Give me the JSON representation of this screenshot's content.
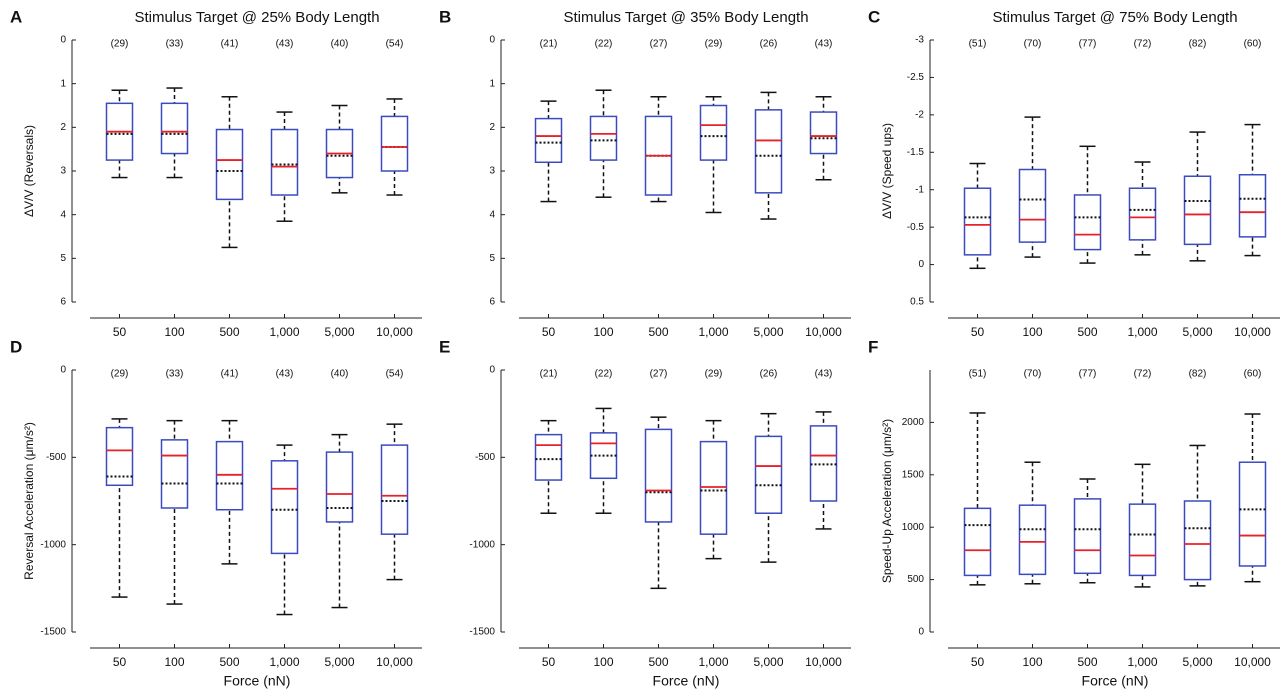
{
  "chart_data": [
    {
      "type": "box",
      "panel": "A",
      "title": "Stimulus Target @ 25% Body Length",
      "ylabel": "ΔV/V (Reversals)",
      "categories": [
        "50",
        "100",
        "500",
        "1,000",
        "5,000",
        "10,000"
      ],
      "counts": [
        "(29)",
        "(33)",
        "(41)",
        "(43)",
        "(40)",
        "(54)"
      ],
      "boxes": [
        {
          "whislo": 1.15,
          "q1": 1.45,
          "med": 2.1,
          "mean": 2.15,
          "q3": 2.75,
          "whishi": 3.15
        },
        {
          "whislo": 1.1,
          "q1": 1.45,
          "med": 2.1,
          "mean": 2.15,
          "q3": 2.6,
          "whishi": 3.15
        },
        {
          "whislo": 1.3,
          "q1": 2.05,
          "med": 2.75,
          "mean": 3.0,
          "q3": 3.65,
          "whishi": 4.75
        },
        {
          "whislo": 1.65,
          "q1": 2.05,
          "med": 2.9,
          "mean": 2.85,
          "q3": 3.55,
          "whishi": 4.15
        },
        {
          "whislo": 1.5,
          "q1": 2.05,
          "med": 2.6,
          "mean": 2.65,
          "q3": 3.15,
          "whishi": 3.5
        },
        {
          "whislo": 1.35,
          "q1": 1.75,
          "med": 2.45,
          "mean": 2.45,
          "q3": 3.0,
          "whishi": 3.55
        }
      ],
      "ylim": [
        0,
        6
      ],
      "yticks": [
        0,
        1,
        2,
        3,
        4,
        5,
        6
      ],
      "inverted": true,
      "box_color": "#3a4bc0",
      "median_color": "#e8202a",
      "mean_color": "#111111"
    },
    {
      "type": "box",
      "panel": "B",
      "title": "Stimulus Target @ 35% Body Length",
      "categories": [
        "50",
        "100",
        "500",
        "1,000",
        "5,000",
        "10,000"
      ],
      "counts": [
        "(21)",
        "(22)",
        "(27)",
        "(29)",
        "(26)",
        "(43)"
      ],
      "boxes": [
        {
          "whislo": 1.4,
          "q1": 1.8,
          "med": 2.2,
          "mean": 2.35,
          "q3": 2.8,
          "whishi": 3.7
        },
        {
          "whislo": 1.15,
          "q1": 1.75,
          "med": 2.15,
          "mean": 2.3,
          "q3": 2.75,
          "whishi": 3.6
        },
        {
          "whislo": 1.3,
          "q1": 1.75,
          "med": 2.65,
          "mean": 2.65,
          "q3": 3.55,
          "whishi": 3.7
        },
        {
          "whislo": 1.3,
          "q1": 1.5,
          "med": 1.95,
          "mean": 2.2,
          "q3": 2.75,
          "whishi": 3.95
        },
        {
          "whislo": 1.2,
          "q1": 1.6,
          "med": 2.3,
          "mean": 2.65,
          "q3": 3.5,
          "whishi": 4.1
        },
        {
          "whislo": 1.3,
          "q1": 1.65,
          "med": 2.2,
          "mean": 2.25,
          "q3": 2.6,
          "whishi": 3.2
        }
      ],
      "ylim": [
        0,
        6
      ],
      "yticks": [
        0,
        1,
        2,
        3,
        4,
        5,
        6
      ],
      "inverted": true,
      "box_color": "#3a4bc0",
      "median_color": "#e8202a",
      "mean_color": "#111111"
    },
    {
      "type": "box",
      "panel": "C",
      "title": "Stimulus Target @ 75% Body Length",
      "ylabel": "ΔV/V (Speed ups)",
      "categories": [
        "50",
        "100",
        "500",
        "1,000",
        "5,000",
        "10,000"
      ],
      "counts": [
        "(51)",
        "(70)",
        "(77)",
        "(72)",
        "(82)",
        "(60)"
      ],
      "boxes": [
        {
          "whislo": -1.35,
          "q1": -1.02,
          "med": -0.53,
          "mean": -0.63,
          "q3": -0.13,
          "whishi": 0.05
        },
        {
          "whislo": -1.97,
          "q1": -1.27,
          "med": -0.6,
          "mean": -0.87,
          "q3": -0.3,
          "whishi": -0.1
        },
        {
          "whislo": -1.58,
          "q1": -0.93,
          "med": -0.4,
          "mean": -0.63,
          "q3": -0.2,
          "whishi": -0.02
        },
        {
          "whislo": -1.37,
          "q1": -1.02,
          "med": -0.63,
          "mean": -0.73,
          "q3": -0.33,
          "whishi": -0.13
        },
        {
          "whislo": -1.77,
          "q1": -1.18,
          "med": -0.67,
          "mean": -0.85,
          "q3": -0.27,
          "whishi": -0.05
        },
        {
          "whislo": -1.87,
          "q1": -1.2,
          "med": -0.7,
          "mean": -0.88,
          "q3": -0.37,
          "whishi": -0.12
        }
      ],
      "ylim": [
        -3,
        0.5
      ],
      "yticks": [
        -3,
        -2.5,
        -2,
        -1.5,
        -1,
        -0.5,
        0,
        0.5
      ],
      "inverted": true,
      "box_color": "#3a4bc0",
      "median_color": "#e8202a",
      "mean_color": "#111111"
    },
    {
      "type": "box",
      "panel": "D",
      "ylabel": "Reversal Acceleration (μm/s²)",
      "xlabel": "Force (nN)",
      "categories": [
        "50",
        "100",
        "500",
        "1,000",
        "5,000",
        "10,000"
      ],
      "counts": [
        "(29)",
        "(33)",
        "(41)",
        "(43)",
        "(40)",
        "(54)"
      ],
      "boxes": [
        {
          "whislo": -1300,
          "q1": -660,
          "med": -460,
          "mean": -610,
          "q3": -330,
          "whishi": -280
        },
        {
          "whislo": -1340,
          "q1": -790,
          "med": -490,
          "mean": -650,
          "q3": -400,
          "whishi": -290
        },
        {
          "whislo": -1110,
          "q1": -800,
          "med": -600,
          "mean": -650,
          "q3": -410,
          "whishi": -290
        },
        {
          "whislo": -1400,
          "q1": -1050,
          "med": -680,
          "mean": -800,
          "q3": -520,
          "whishi": -430
        },
        {
          "whislo": -1360,
          "q1": -870,
          "med": -710,
          "mean": -790,
          "q3": -470,
          "whishi": -370
        },
        {
          "whislo": -1200,
          "q1": -940,
          "med": -720,
          "mean": -750,
          "q3": -430,
          "whishi": -310
        }
      ],
      "ylim": [
        -1500,
        0
      ],
      "yticks": [
        -1500,
        -1000,
        -500,
        0
      ],
      "inverted": false,
      "box_color": "#3a4bc0",
      "median_color": "#e8202a",
      "mean_color": "#111111"
    },
    {
      "type": "box",
      "panel": "E",
      "xlabel": "Force (nN)",
      "categories": [
        "50",
        "100",
        "500",
        "1,000",
        "5,000",
        "10,000"
      ],
      "counts": [
        "(21)",
        "(22)",
        "(27)",
        "(29)",
        "(26)",
        "(43)"
      ],
      "boxes": [
        {
          "whislo": -820,
          "q1": -630,
          "med": -430,
          "mean": -510,
          "q3": -370,
          "whishi": -290
        },
        {
          "whislo": -820,
          "q1": -620,
          "med": -420,
          "mean": -490,
          "q3": -360,
          "whishi": -220
        },
        {
          "whislo": -1250,
          "q1": -870,
          "med": -690,
          "mean": -700,
          "q3": -340,
          "whishi": -270
        },
        {
          "whislo": -1080,
          "q1": -940,
          "med": -670,
          "mean": -690,
          "q3": -410,
          "whishi": -290
        },
        {
          "whislo": -1100,
          "q1": -820,
          "med": -550,
          "mean": -660,
          "q3": -380,
          "whishi": -250
        },
        {
          "whislo": -910,
          "q1": -750,
          "med": -490,
          "mean": -540,
          "q3": -320,
          "whishi": -240
        }
      ],
      "ylim": [
        -1500,
        0
      ],
      "yticks": [
        -1500,
        -1000,
        -500,
        0
      ],
      "inverted": false,
      "box_color": "#3a4bc0",
      "median_color": "#e8202a",
      "mean_color": "#111111"
    },
    {
      "type": "box",
      "panel": "F",
      "ylabel": "Speed-Up Acceleration (μm/s²)",
      "xlabel": "Force (nN)",
      "categories": [
        "50",
        "100",
        "500",
        "1,000",
        "5,000",
        "10,000"
      ],
      "counts": [
        "(51)",
        "(70)",
        "(77)",
        "(72)",
        "(82)",
        "(60)"
      ],
      "boxes": [
        {
          "whislo": 450,
          "q1": 540,
          "med": 780,
          "mean": 1020,
          "q3": 1180,
          "whishi": 2090
        },
        {
          "whislo": 460,
          "q1": 550,
          "med": 860,
          "mean": 980,
          "q3": 1210,
          "whishi": 1620
        },
        {
          "whislo": 470,
          "q1": 560,
          "med": 780,
          "mean": 980,
          "q3": 1270,
          "whishi": 1460
        },
        {
          "whislo": 430,
          "q1": 540,
          "med": 730,
          "mean": 930,
          "q3": 1220,
          "whishi": 1600
        },
        {
          "whislo": 440,
          "q1": 500,
          "med": 840,
          "mean": 990,
          "q3": 1250,
          "whishi": 1780
        },
        {
          "whislo": 480,
          "q1": 630,
          "med": 920,
          "mean": 1170,
          "q3": 1620,
          "whishi": 2080
        }
      ],
      "ylim": [
        0,
        2500
      ],
      "yticks": [
        0,
        500,
        1000,
        1500,
        2000
      ],
      "inverted": false,
      "box_color": "#3a4bc0",
      "median_color": "#e8202a",
      "mean_color": "#111111"
    }
  ]
}
